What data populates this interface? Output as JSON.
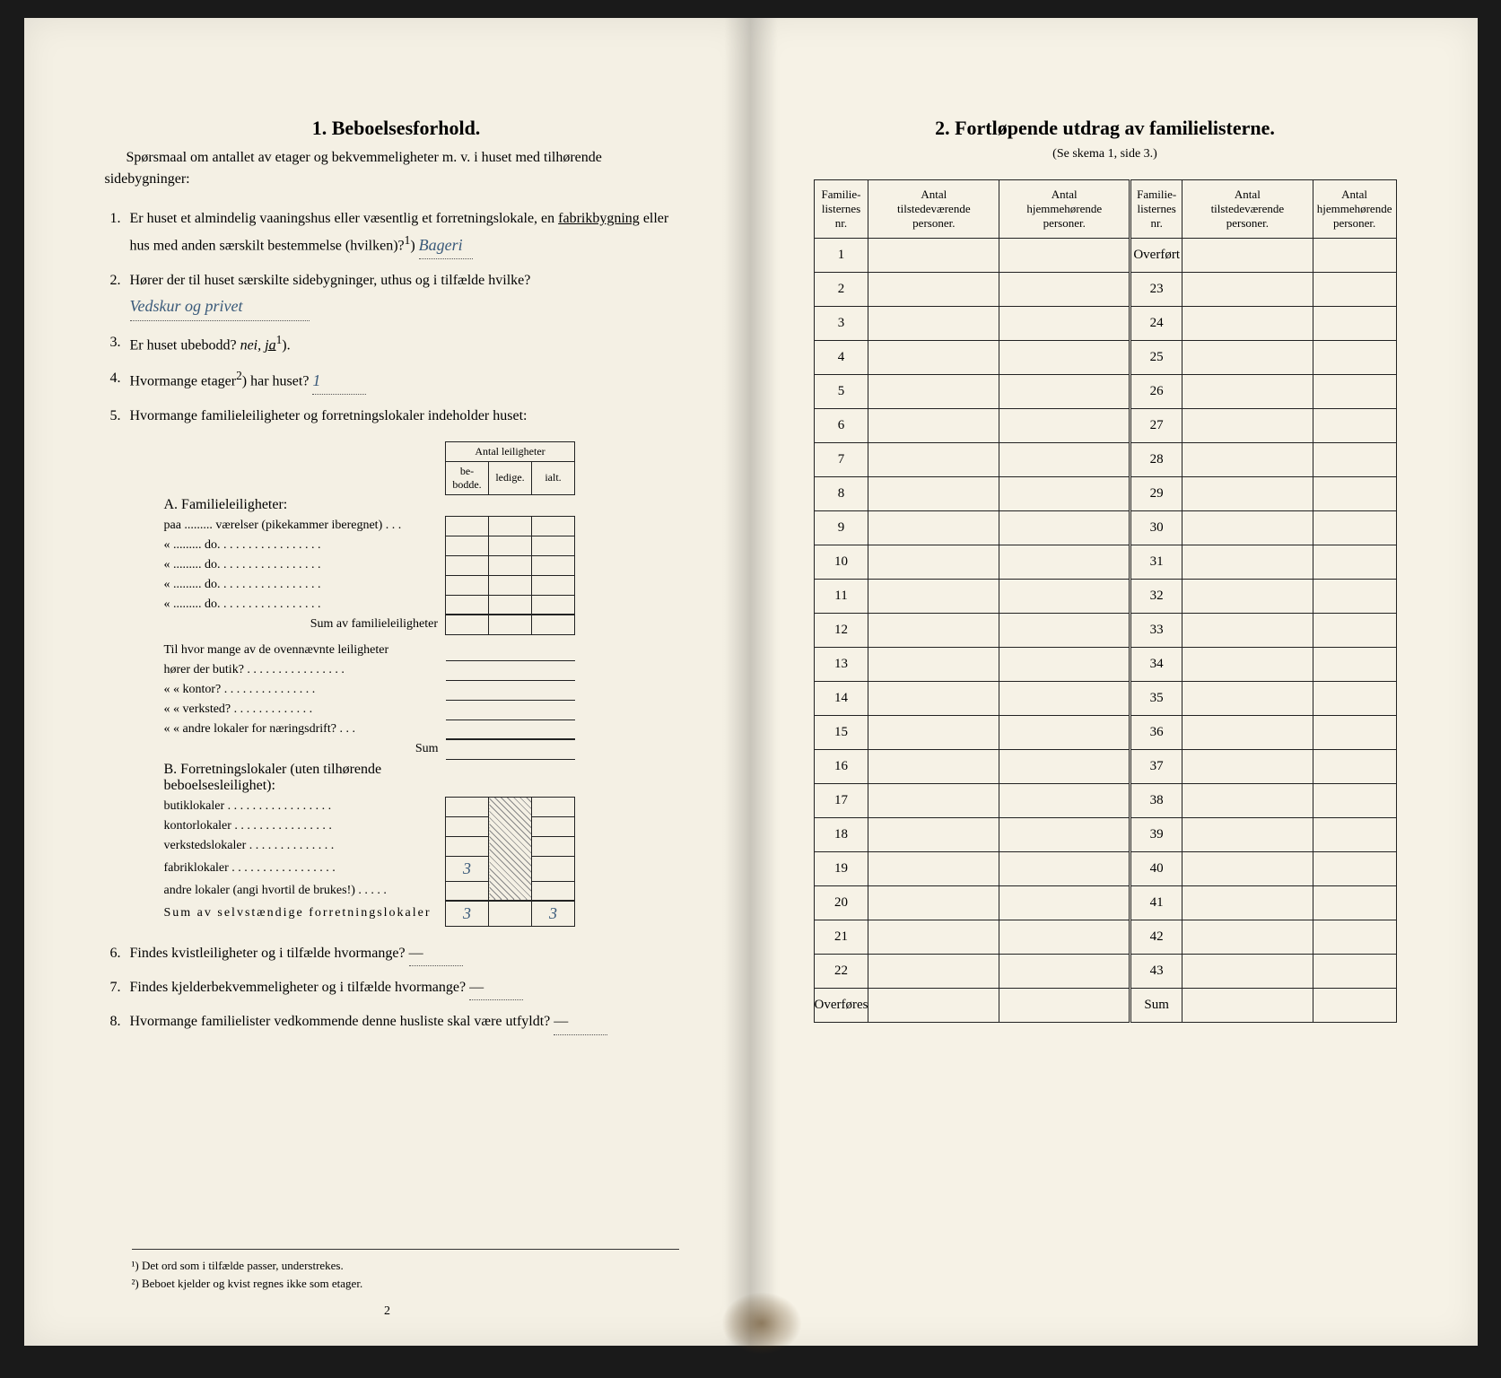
{
  "left": {
    "title": "1.   Beboelsesforhold.",
    "intro": "Spørsmaal om antallet av etager og bekvemmeligheter m. v. i huset med tilhørende sidebygninger:",
    "q1": {
      "num": "1.",
      "text_a": "Er huset et almindelig vaaningshus eller væsentlig et forretningslokale, en ",
      "text_fabrik": "fabrikbygning",
      "text_b": " eller hus med anden særskilt bestemmelse (hvilken)?",
      "sup": "1",
      "paren": ")",
      "answer": "Bageri"
    },
    "q2": {
      "num": "2.",
      "text": "Hører der til huset særskilte sidebygninger, uthus og i tilfælde hvilke?",
      "answer": "Vedskur og privet"
    },
    "q3": {
      "num": "3.",
      "text_a": "Er huset ubebodd?  ",
      "nei": "nei,",
      "ja": "ja",
      "sup": "1",
      "paren": ")."
    },
    "q4": {
      "num": "4.",
      "text_a": "Hvormange etager",
      "sup": "2",
      "text_b": ") har huset?",
      "answer": "1"
    },
    "q5": {
      "num": "5.",
      "text": "Hvormange familieleiligheter og forretningslokaler indeholder huset:"
    },
    "leil_header": "Antal leiligheter",
    "col_bebodde": "be-\nbodde.",
    "col_ledige": "ledige.",
    "col_ialt": "ialt.",
    "sectA": "A. Familieleiligheter:",
    "rowA1": "paa ......... værelser (pikekammer iberegnet) . . .",
    "rowA2": "«   .........   do.   . . . . . . . . . . . . . . . .",
    "rowA3": "«   .........   do.   . . . . . . . . . . . . . . . .",
    "rowA4": "«   .........   do.   . . . . . . . . . . . . . . . .",
    "rowA5": "«   .........   do.   . . . . . . . . . . . . . . . .",
    "sumA": "Sum av familieleiligheter",
    "tilhvor": "Til hvor mange av de ovennævnte leiligheter",
    "butik": "hører der butik? . . . . . . . . . . . . . . . .",
    "kontor": "«     «   kontor? . . . . . . . . . . . . . . .",
    "verksted": "«     «   verksted? . . . . . . . . . . . . .",
    "andre": "«     «   andre lokaler for næringsdrift? . . .",
    "sumMid": "Sum",
    "sectB": "B. Forretningslokaler (uten tilhørende beboelsesleilighet):",
    "b_butik": "butiklokaler . . . . . . . . . . . . . . . . .",
    "b_kontor": "kontorlokaler . . . . . . . . . . . . . . . .",
    "b_verksted": "verkstedslokaler . . . . . . . . . . . . . .",
    "b_fabrik": "fabriklokaler . . . . . . . . . . . . . . . . .",
    "b_fabrik_val": "3",
    "b_andre": "andre lokaler (angi hvortil de brukes!) . . . . .",
    "sumB": "Sum av selvstændige forretningslokaler",
    "sumB_bebodde": "3",
    "sumB_ialt": "3",
    "q6": {
      "num": "6.",
      "text": "Findes kvistleiligheter og i tilfælde hvormange?",
      "answer": "—"
    },
    "q7": {
      "num": "7.",
      "text": "Findes kjelderbekvemmeligheter og i tilfælde hvormange?",
      "answer": "—"
    },
    "q8": {
      "num": "8.",
      "text": "Hvormange familielister vedkommende denne husliste skal være utfyldt?",
      "answer": "—"
    },
    "fn1": "¹) Det ord som i tilfælde passer, understrekes.",
    "fn2": "²) Beboet kjelder og kvist regnes ikke som etager.",
    "pagenum": "2"
  },
  "right": {
    "title": "2.   Fortløpende utdrag av familielisterne.",
    "sub": "(Se skema 1, side 3.)",
    "col1": "Familie-\nlisternes\nnr.",
    "col2": "Antal\ntilstedeværende\npersoner.",
    "col3": "Antal\nhjemmehørende\npersoner.",
    "col4": "Familie-\nlisternes\nnr.",
    "col5": "Antal\ntilstedeværende\npersoner.",
    "col6": "Antal\nhjemmehørende\npersoner.",
    "left_rows": [
      "1",
      "2",
      "3",
      "4",
      "5",
      "6",
      "7",
      "8",
      "9",
      "10",
      "11",
      "12",
      "13",
      "14",
      "15",
      "16",
      "17",
      "18",
      "19",
      "20",
      "21",
      "22"
    ],
    "right_rows": [
      "Overført",
      "23",
      "24",
      "25",
      "26",
      "27",
      "28",
      "29",
      "30",
      "31",
      "32",
      "33",
      "34",
      "35",
      "36",
      "37",
      "38",
      "39",
      "40",
      "41",
      "42",
      "43"
    ],
    "overfores": "Overføres",
    "sum": "Sum"
  }
}
